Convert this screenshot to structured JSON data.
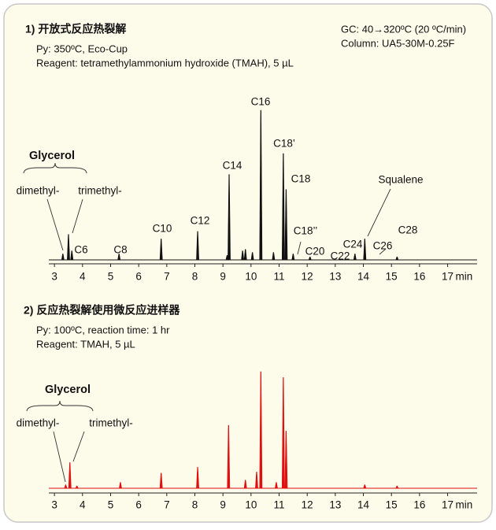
{
  "chart_data": [
    {
      "type": "chromatogram",
      "title": "1) 开放式反应热裂解",
      "notes": [
        "Py: 350ºC, Eco-Cup",
        "Reagent: tetramethylammonium hydroxide (TMAH), 5 µL",
        "GC: 40→320ºC (20 ºC/min)",
        "Column: UA5-30M-0.25F"
      ],
      "x": [
        3.3,
        3.5,
        3.62,
        5.3,
        6.8,
        8.1,
        9.15,
        9.22,
        9.7,
        9.8,
        10.05,
        10.35,
        10.8,
        11.15,
        11.25,
        11.5,
        12.1,
        13.7,
        14.05,
        15.2
      ],
      "values": [
        4,
        17,
        6,
        4,
        14,
        19,
        3,
        57,
        6,
        7,
        5,
        100,
        5,
        71,
        47,
        4,
        2,
        4,
        14,
        2
      ],
      "color": "#111111",
      "xlim": [
        2.8,
        18.05
      ],
      "ylim": [
        0,
        100
      ],
      "xticks": [
        3,
        4,
        5,
        6,
        7,
        8,
        9,
        10,
        11,
        12,
        13,
        14,
        15,
        16,
        17
      ],
      "xlabel": "min",
      "annotations": [
        "Glycerol",
        "dimethyl-",
        "trimethyl-",
        "C6",
        "C8",
        "C10",
        "C12",
        "C14",
        "C16",
        "C18’",
        "C18",
        "C18’’",
        "C20",
        "C22",
        "C24",
        "C26",
        "C28",
        "Squalene"
      ]
    },
    {
      "type": "chromatogram",
      "title": "2) 反应热裂解使用微反应进样器",
      "notes": [
        "Py: 100ºC, reaction time: 1 hr",
        "Reagent: TMAH, 5 µL"
      ],
      "x": [
        3.4,
        3.55,
        3.8,
        5.35,
        6.8,
        8.1,
        9.2,
        9.8,
        10.2,
        10.35,
        10.9,
        11.15,
        11.25,
        14.05,
        15.2
      ],
      "values": [
        3,
        22,
        2,
        5,
        13,
        18,
        54,
        7,
        14,
        100,
        5,
        95,
        49,
        3,
        2
      ],
      "color": "#e01010",
      "xlim": [
        2.8,
        18.05
      ],
      "ylim": [
        0,
        100
      ],
      "xticks": [
        3,
        4,
        5,
        6,
        7,
        8,
        9,
        10,
        11,
        12,
        13,
        14,
        15,
        16,
        17
      ],
      "xlabel": "min",
      "annotations": [
        "Glycerol",
        "dimethyl-",
        "trimethyl-"
      ]
    }
  ]
}
